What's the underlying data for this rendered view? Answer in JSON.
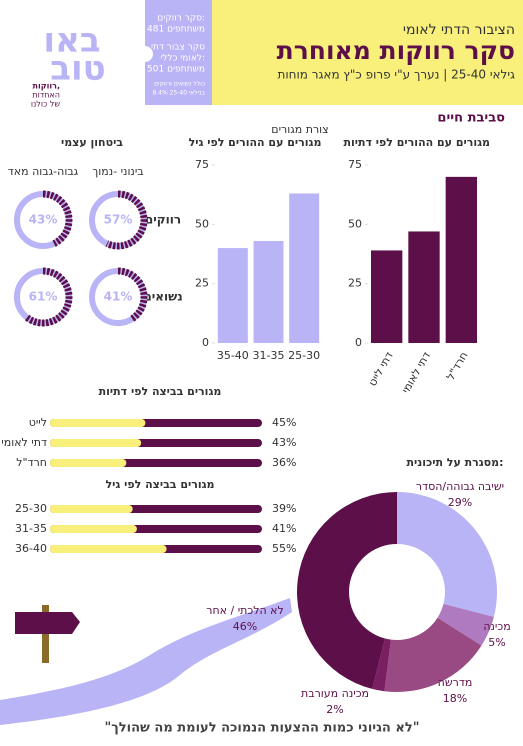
{
  "header": {
    "subtitle": "הציבור הדתי לאומי",
    "title": "סקר רווקות מאוחרת",
    "note": "גילאי 25-40 | נערך ע\"י פרופ כ\"ץ מאגר מוחות"
  },
  "logo": {
    "mark_top": "באו",
    "mark_bottom": "טוב",
    "tagline_1": "רווקות,",
    "tagline_2": "האחדות",
    "tagline_3": "של כולנו"
  },
  "sidebar": {
    "lines": [
      "סקר רווקים:",
      "481 משתתפים",
      "סקר צבור דתי",
      "לאומי כללי:",
      "501 משתתפים",
      "כולל נשואים ורווקים",
      "8.4% בגילאי 25-40"
    ]
  },
  "section_title": "סביבת חיים",
  "quote": "\"לא הגיוני כמות ההצעות הנמוכה לעומת מה שהולך\"",
  "chart_data": [
    {
      "type": "bar",
      "title": "מגורים עם ההורים לפי דתיות",
      "categories": [
        "דתי לייט",
        "דתי לאומי",
        "חרד\"ל"
      ],
      "values": [
        39,
        47,
        70
      ],
      "color": "#5c0f48",
      "ylim": [
        0,
        75
      ],
      "yticks": [
        0,
        25,
        50,
        75
      ]
    },
    {
      "type": "bar",
      "supertitle": "צורת מגורים",
      "title": "מגורים עם ההורים לפי גיל",
      "categories": [
        "35-40",
        "31-35",
        "25-30"
      ],
      "values": [
        40,
        43,
        63
      ],
      "color": "#b9b4f6",
      "ylim": [
        0,
        75
      ],
      "yticks": [
        0,
        25,
        50,
        75
      ]
    },
    {
      "type": "ring",
      "title": "ביטחון עצמי",
      "categories": [
        "בינוני -נמוך",
        "גבוה-גבוה מאד"
      ],
      "color": "#5c0f48",
      "track_color": "#b9b4f6",
      "series": [
        {
          "name": "רווקים",
          "values": [
            57,
            43
          ],
          "value_labels": [
            "57%",
            "43%"
          ]
        },
        {
          "name": "נשואים",
          "values": [
            41,
            61
          ],
          "value_labels": [
            "41%",
            "61%"
          ]
        }
      ]
    },
    {
      "type": "progress",
      "title": "מגורים בביצה לפי דתיות",
      "categories": [
        "לייט",
        "דתי לאומי",
        "חרד\"ל"
      ],
      "values": [
        45,
        43,
        36
      ],
      "value_labels": [
        "45%",
        "43%",
        "36%"
      ],
      "xlim": [
        0,
        100
      ],
      "color": "#f8f07a",
      "track_color": "#5c0f48"
    },
    {
      "type": "progress",
      "title": "מגורים בביצה לפי גיל",
      "categories": [
        "25-30",
        "31-35",
        "36-40"
      ],
      "values": [
        39,
        41,
        55
      ],
      "value_labels": [
        "39%",
        "41%",
        "55%"
      ],
      "xlim": [
        0,
        100
      ],
      "color": "#f8f07a",
      "track_color": "#5c0f48"
    },
    {
      "type": "pie",
      "title": "מסגרת על תיכונית:",
      "categories": [
        "ישיבה גבוהה/הסדר",
        "מכינה",
        "מדרשה",
        "מכינה מעורבת",
        "לא הלכתי / אחר"
      ],
      "values": [
        29,
        5,
        18,
        2,
        46
      ],
      "value_labels": [
        "29%",
        "5%",
        "18%",
        "2%",
        "46%"
      ],
      "colors": [
        "#b9b4f6",
        "#b07ac0",
        "#9a4a82",
        "#7a1f62",
        "#5c0f48"
      ]
    }
  ]
}
